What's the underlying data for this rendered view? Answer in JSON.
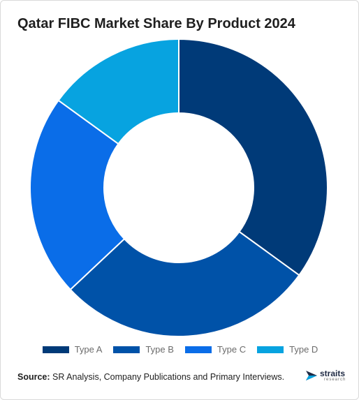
{
  "chart_data": {
    "type": "pie",
    "subtype": "donut",
    "title": "Qatar FIBC Market Share By Product 2024",
    "categories": [
      "Type A",
      "Type B",
      "Type C",
      "Type D"
    ],
    "values": [
      35,
      28,
      22,
      15
    ],
    "colors": [
      "#003a78",
      "#0052a8",
      "#0a6de8",
      "#07a3e0"
    ],
    "legend_position": "bottom"
  },
  "source": {
    "label": "Source:",
    "text": " SR Analysis, Company Publications and Primary Interviews."
  },
  "logo": {
    "name": "straits",
    "subtext": "research"
  }
}
